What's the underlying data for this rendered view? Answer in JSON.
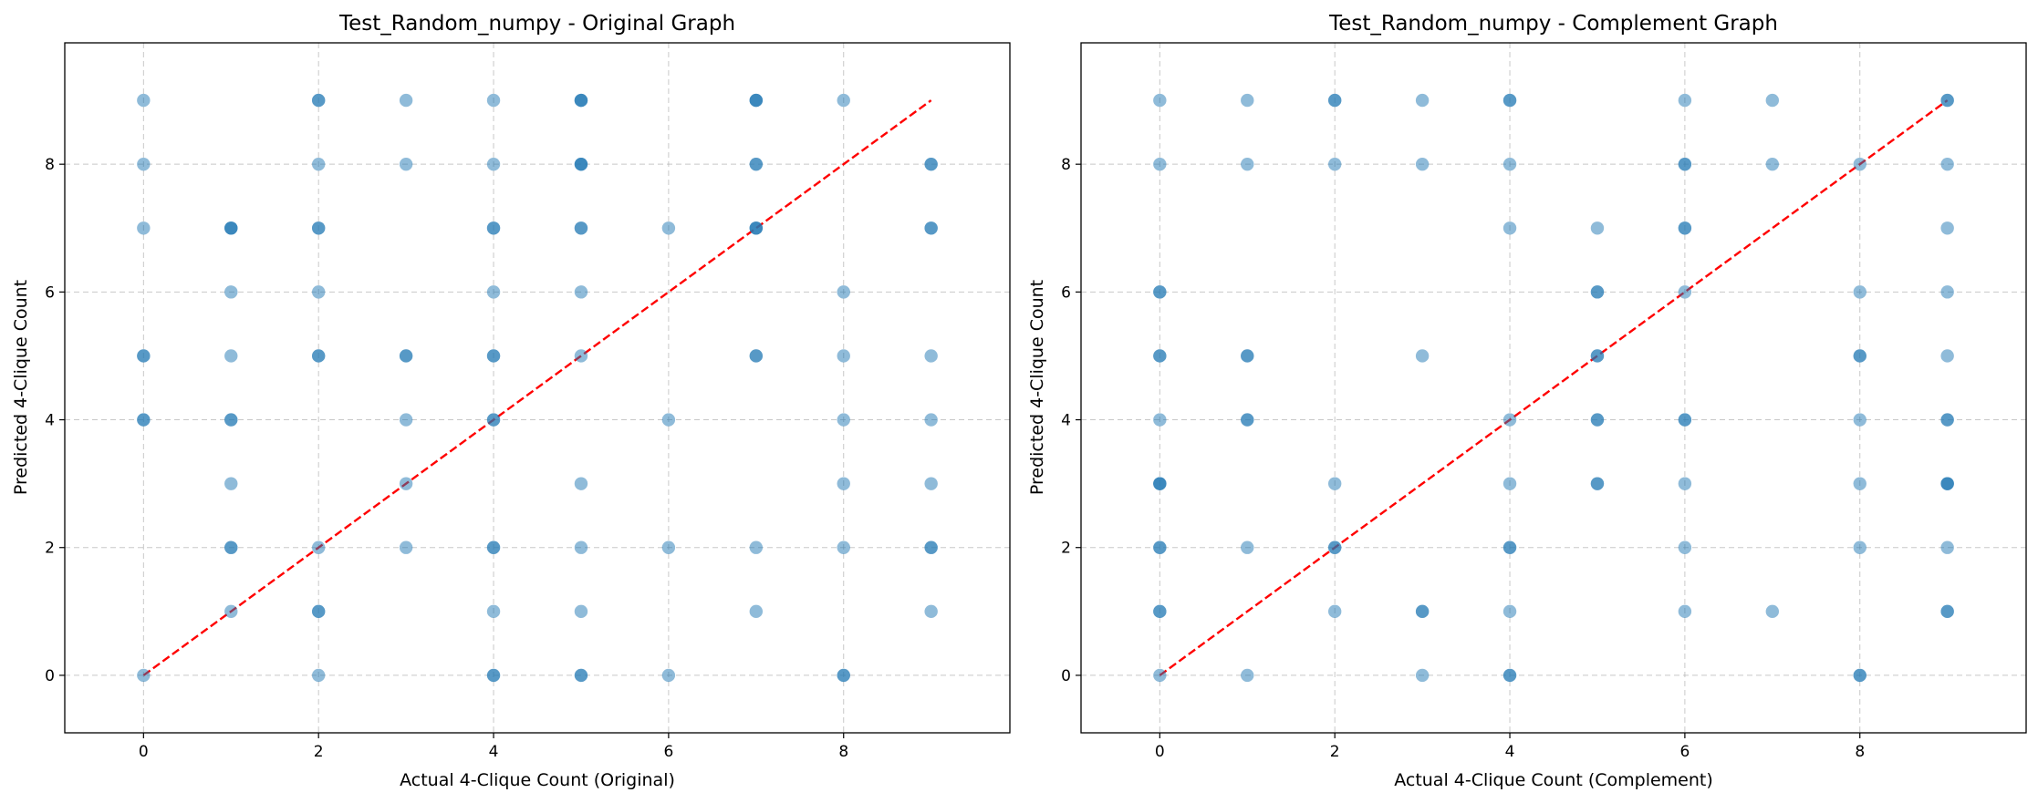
{
  "chart_data": [
    {
      "type": "scatter",
      "title": "Test_Random_numpy - Original Graph",
      "xlabel": "Actual 4-Clique Count (Original)",
      "ylabel": "Predicted 4-Clique Count",
      "xlim": [
        -0.9,
        9.9
      ],
      "ylim": [
        -0.9,
        9.9
      ],
      "xticks": [
        0,
        2,
        4,
        6,
        8
      ],
      "yticks": [
        0,
        2,
        4,
        6,
        8
      ],
      "grid": true,
      "point_color": "#1f77b4",
      "point_alpha": 0.5,
      "reference_line": {
        "from": [
          0,
          0
        ],
        "to": [
          9,
          9
        ],
        "color": "#ff0000",
        "style": "dashed"
      },
      "points": [
        [
          0,
          0
        ],
        [
          0,
          4
        ],
        [
          0,
          4
        ],
        [
          0,
          5
        ],
        [
          0,
          5
        ],
        [
          0,
          7
        ],
        [
          0,
          8
        ],
        [
          0,
          9
        ],
        [
          1,
          1
        ],
        [
          1,
          2
        ],
        [
          1,
          2
        ],
        [
          1,
          3
        ],
        [
          1,
          4
        ],
        [
          1,
          4
        ],
        [
          1,
          5
        ],
        [
          1,
          6
        ],
        [
          1,
          7
        ],
        [
          1,
          7
        ],
        [
          1,
          7
        ],
        [
          2,
          0
        ],
        [
          2,
          1
        ],
        [
          2,
          1
        ],
        [
          2,
          2
        ],
        [
          2,
          5
        ],
        [
          2,
          5
        ],
        [
          2,
          6
        ],
        [
          2,
          7
        ],
        [
          2,
          7
        ],
        [
          2,
          8
        ],
        [
          2,
          9
        ],
        [
          2,
          9
        ],
        [
          3,
          2
        ],
        [
          3,
          3
        ],
        [
          3,
          4
        ],
        [
          3,
          5
        ],
        [
          3,
          5
        ],
        [
          3,
          8
        ],
        [
          3,
          9
        ],
        [
          4,
          0
        ],
        [
          4,
          0
        ],
        [
          4,
          1
        ],
        [
          4,
          2
        ],
        [
          4,
          2
        ],
        [
          4,
          4
        ],
        [
          4,
          4
        ],
        [
          4,
          5
        ],
        [
          4,
          5
        ],
        [
          4,
          6
        ],
        [
          4,
          7
        ],
        [
          4,
          7
        ],
        [
          4,
          8
        ],
        [
          4,
          9
        ],
        [
          5,
          0
        ],
        [
          5,
          0
        ],
        [
          5,
          1
        ],
        [
          5,
          2
        ],
        [
          5,
          3
        ],
        [
          5,
          5
        ],
        [
          5,
          6
        ],
        [
          5,
          7
        ],
        [
          5,
          7
        ],
        [
          5,
          8
        ],
        [
          5,
          8
        ],
        [
          5,
          8
        ],
        [
          5,
          9
        ],
        [
          5,
          9
        ],
        [
          5,
          9
        ],
        [
          6,
          0
        ],
        [
          6,
          2
        ],
        [
          6,
          4
        ],
        [
          6,
          7
        ],
        [
          7,
          1
        ],
        [
          7,
          2
        ],
        [
          7,
          5
        ],
        [
          7,
          5
        ],
        [
          7,
          7
        ],
        [
          7,
          7
        ],
        [
          7,
          7
        ],
        [
          7,
          8
        ],
        [
          7,
          8
        ],
        [
          7,
          9
        ],
        [
          7,
          9
        ],
        [
          7,
          9
        ],
        [
          8,
          0
        ],
        [
          8,
          0
        ],
        [
          8,
          2
        ],
        [
          8,
          3
        ],
        [
          8,
          4
        ],
        [
          8,
          5
        ],
        [
          8,
          6
        ],
        [
          8,
          9
        ],
        [
          9,
          1
        ],
        [
          9,
          2
        ],
        [
          9,
          2
        ],
        [
          9,
          3
        ],
        [
          9,
          4
        ],
        [
          9,
          5
        ],
        [
          9,
          7
        ],
        [
          9,
          7
        ],
        [
          9,
          8
        ],
        [
          9,
          8
        ]
      ]
    },
    {
      "type": "scatter",
      "title": "Test_Random_numpy - Complement Graph",
      "xlabel": "Actual 4-Clique Count (Complement)",
      "ylabel": "Predicted 4-Clique Count",
      "xlim": [
        -0.9,
        9.9
      ],
      "ylim": [
        -0.9,
        9.9
      ],
      "xticks": [
        0,
        2,
        4,
        6,
        8
      ],
      "yticks": [
        0,
        2,
        4,
        6,
        8
      ],
      "grid": true,
      "point_color": "#1f77b4",
      "point_alpha": 0.5,
      "reference_line": {
        "from": [
          0,
          0
        ],
        "to": [
          9,
          9
        ],
        "color": "#ff0000",
        "style": "dashed"
      },
      "points": [
        [
          0,
          0
        ],
        [
          0,
          1
        ],
        [
          0,
          1
        ],
        [
          0,
          2
        ],
        [
          0,
          2
        ],
        [
          0,
          3
        ],
        [
          0,
          3
        ],
        [
          0,
          3
        ],
        [
          0,
          4
        ],
        [
          0,
          5
        ],
        [
          0,
          5
        ],
        [
          0,
          6
        ],
        [
          0,
          6
        ],
        [
          0,
          8
        ],
        [
          0,
          9
        ],
        [
          1,
          0
        ],
        [
          1,
          2
        ],
        [
          1,
          4
        ],
        [
          1,
          4
        ],
        [
          1,
          5
        ],
        [
          1,
          5
        ],
        [
          1,
          8
        ],
        [
          1,
          9
        ],
        [
          2,
          1
        ],
        [
          2,
          2
        ],
        [
          2,
          2
        ],
        [
          2,
          3
        ],
        [
          2,
          8
        ],
        [
          2,
          9
        ],
        [
          2,
          9
        ],
        [
          3,
          0
        ],
        [
          3,
          1
        ],
        [
          3,
          1
        ],
        [
          3,
          5
        ],
        [
          3,
          8
        ],
        [
          3,
          9
        ],
        [
          4,
          0
        ],
        [
          4,
          0
        ],
        [
          4,
          1
        ],
        [
          4,
          2
        ],
        [
          4,
          2
        ],
        [
          4,
          3
        ],
        [
          4,
          4
        ],
        [
          4,
          7
        ],
        [
          4,
          8
        ],
        [
          4,
          9
        ],
        [
          4,
          9
        ],
        [
          5,
          3
        ],
        [
          5,
          3
        ],
        [
          5,
          4
        ],
        [
          5,
          4
        ],
        [
          5,
          5
        ],
        [
          5,
          5
        ],
        [
          5,
          6
        ],
        [
          5,
          6
        ],
        [
          5,
          7
        ],
        [
          6,
          1
        ],
        [
          6,
          2
        ],
        [
          6,
          3
        ],
        [
          6,
          4
        ],
        [
          6,
          4
        ],
        [
          6,
          6
        ],
        [
          6,
          7
        ],
        [
          6,
          7
        ],
        [
          6,
          8
        ],
        [
          6,
          8
        ],
        [
          6,
          9
        ],
        [
          7,
          1
        ],
        [
          7,
          8
        ],
        [
          7,
          9
        ],
        [
          8,
          0
        ],
        [
          8,
          0
        ],
        [
          8,
          2
        ],
        [
          8,
          3
        ],
        [
          8,
          4
        ],
        [
          8,
          5
        ],
        [
          8,
          5
        ],
        [
          8,
          6
        ],
        [
          8,
          8
        ],
        [
          9,
          1
        ],
        [
          9,
          1
        ],
        [
          9,
          2
        ],
        [
          9,
          3
        ],
        [
          9,
          3
        ],
        [
          9,
          3
        ],
        [
          9,
          4
        ],
        [
          9,
          4
        ],
        [
          9,
          5
        ],
        [
          9,
          6
        ],
        [
          9,
          7
        ],
        [
          9,
          8
        ],
        [
          9,
          9
        ],
        [
          9,
          9
        ]
      ]
    }
  ]
}
